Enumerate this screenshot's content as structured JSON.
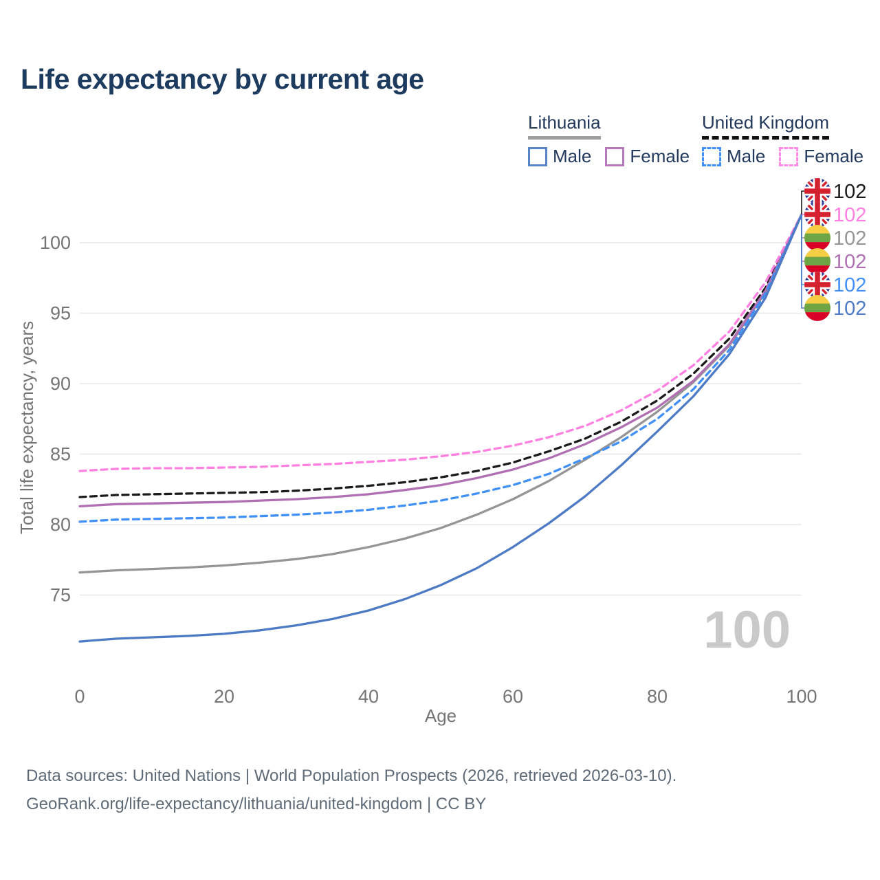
{
  "title": "Life expectancy by current age",
  "legend": {
    "lithuania": {
      "label": "Lithuania",
      "male": "Male",
      "female": "Female"
    },
    "uk": {
      "label": "United Kingdom",
      "male": "Male",
      "female": "Female"
    }
  },
  "watermark": "100",
  "footer": {
    "line1": "Data sources: United Nations | World Population Prospects (2026, retrieved 2026-03-10).",
    "line2": "GeoRank.org/life-expectancy/lithuania/united-kingdom | CC BY"
  },
  "colors": {
    "uk_both": "#1a1a1a",
    "uk_female": "#ff80e0",
    "lt_both": "#959595",
    "lt_female": "#b06fb2",
    "uk_male": "#4090f7",
    "lt_male": "#4d7ac5",
    "grid": "#e7e7e7",
    "axis_text": "#757575",
    "title_text": "#1d3a5f",
    "footer_text": "#5f6b76",
    "watermark": "#c9c9c9"
  },
  "chart_data": {
    "type": "line",
    "title": "Life expectancy by current age",
    "xlabel": "Age",
    "ylabel": "Total life expectancy, years",
    "xlim": [
      0,
      100
    ],
    "ylim": [
      71,
      103.5
    ],
    "x_ticks": [
      0,
      20,
      40,
      60,
      80,
      100
    ],
    "y_ticks": [
      75,
      80,
      85,
      90,
      95,
      100
    ],
    "grid": "horizontal",
    "legend_position": "top-right",
    "x": [
      0,
      5,
      10,
      15,
      20,
      25,
      30,
      35,
      40,
      45,
      50,
      55,
      60,
      65,
      70,
      75,
      80,
      85,
      90,
      95,
      100
    ],
    "series": [
      {
        "name": "United Kingdom — Both sexes",
        "country": "uk",
        "sex": "both",
        "style": "dashed",
        "color": "#1a1a1a",
        "end_label": "102",
        "values": [
          81.95,
          82.1,
          82.15,
          82.2,
          82.25,
          82.3,
          82.4,
          82.55,
          82.75,
          83.0,
          83.35,
          83.8,
          84.4,
          85.2,
          86.1,
          87.3,
          88.8,
          90.7,
          93.2,
          96.8,
          102
        ]
      },
      {
        "name": "United Kingdom — Female",
        "country": "uk",
        "sex": "female",
        "style": "dashed",
        "color": "#ff80e0",
        "end_label": "102",
        "values": [
          83.8,
          83.95,
          84.0,
          84.0,
          84.05,
          84.1,
          84.2,
          84.3,
          84.45,
          84.6,
          84.85,
          85.15,
          85.6,
          86.2,
          87.0,
          88.1,
          89.5,
          91.3,
          93.7,
          97.2,
          102
        ]
      },
      {
        "name": "Lithuania — Both sexes",
        "country": "lt",
        "sex": "both",
        "style": "solid",
        "color": "#959595",
        "end_label": "102",
        "values": [
          76.6,
          76.75,
          76.85,
          76.95,
          77.1,
          77.3,
          77.55,
          77.9,
          78.4,
          79.0,
          79.75,
          80.7,
          81.8,
          83.1,
          84.6,
          86.2,
          88.0,
          90.1,
          92.7,
          96.5,
          102
        ]
      },
      {
        "name": "Lithuania — Female",
        "country": "lt",
        "sex": "female",
        "style": "solid",
        "color": "#b06fb2",
        "end_label": "102",
        "values": [
          81.3,
          81.45,
          81.5,
          81.55,
          81.6,
          81.7,
          81.8,
          81.95,
          82.15,
          82.45,
          82.8,
          83.3,
          83.9,
          84.7,
          85.7,
          86.9,
          88.3,
          90.2,
          92.8,
          96.6,
          102
        ]
      },
      {
        "name": "United Kingdom — Male",
        "country": "uk",
        "sex": "male",
        "style": "dashed",
        "color": "#4090f7",
        "end_label": "102",
        "values": [
          80.2,
          80.35,
          80.4,
          80.45,
          80.5,
          80.6,
          80.7,
          80.85,
          81.05,
          81.35,
          81.7,
          82.2,
          82.8,
          83.6,
          84.7,
          85.9,
          87.5,
          89.6,
          92.4,
          96.4,
          102
        ]
      },
      {
        "name": "Lithuania — Male",
        "country": "lt",
        "sex": "male",
        "style": "solid",
        "color": "#4d7ac5",
        "end_label": "102",
        "values": [
          71.7,
          71.9,
          72.0,
          72.1,
          72.25,
          72.5,
          72.85,
          73.3,
          73.9,
          74.7,
          75.7,
          76.9,
          78.4,
          80.1,
          82.0,
          84.2,
          86.6,
          89.1,
          92.1,
          96.1,
          102
        ]
      }
    ]
  }
}
